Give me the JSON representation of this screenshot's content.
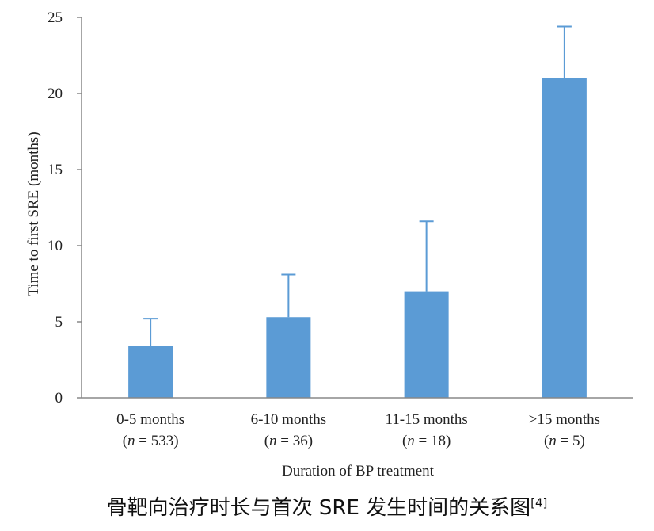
{
  "chart_data": {
    "type": "bar",
    "title": "",
    "xlabel": "Duration of BP treatment",
    "ylabel": "Time to first SRE (months)",
    "ylim": [
      0,
      25
    ],
    "yticks": [
      0,
      5,
      10,
      15,
      20,
      25
    ],
    "grid": false,
    "bar_color": "#5b9bd5",
    "axis_color": "#888888",
    "categories": [
      {
        "label": "0-5 months",
        "n_prefix": "(",
        "n_symbol": "n",
        "n_suffix": " = 533)"
      },
      {
        "label": "6-10 months",
        "n_prefix": "(",
        "n_symbol": "n",
        "n_suffix": " = 36)"
      },
      {
        "label": "11-15 months",
        "n_prefix": "(",
        "n_symbol": "n",
        "n_suffix": " = 18)"
      },
      {
        "label": ">15 months",
        "n_prefix": "(",
        "n_symbol": "n",
        "n_suffix": " = 5)"
      }
    ],
    "values": [
      3.4,
      5.3,
      7.0,
      21.0
    ],
    "error_upper": [
      5.2,
      8.1,
      11.6,
      24.4
    ]
  },
  "caption": {
    "text": "骨靶向治疗时长与首次 SRE 发生时间的关系图",
    "reference": "[4]"
  }
}
